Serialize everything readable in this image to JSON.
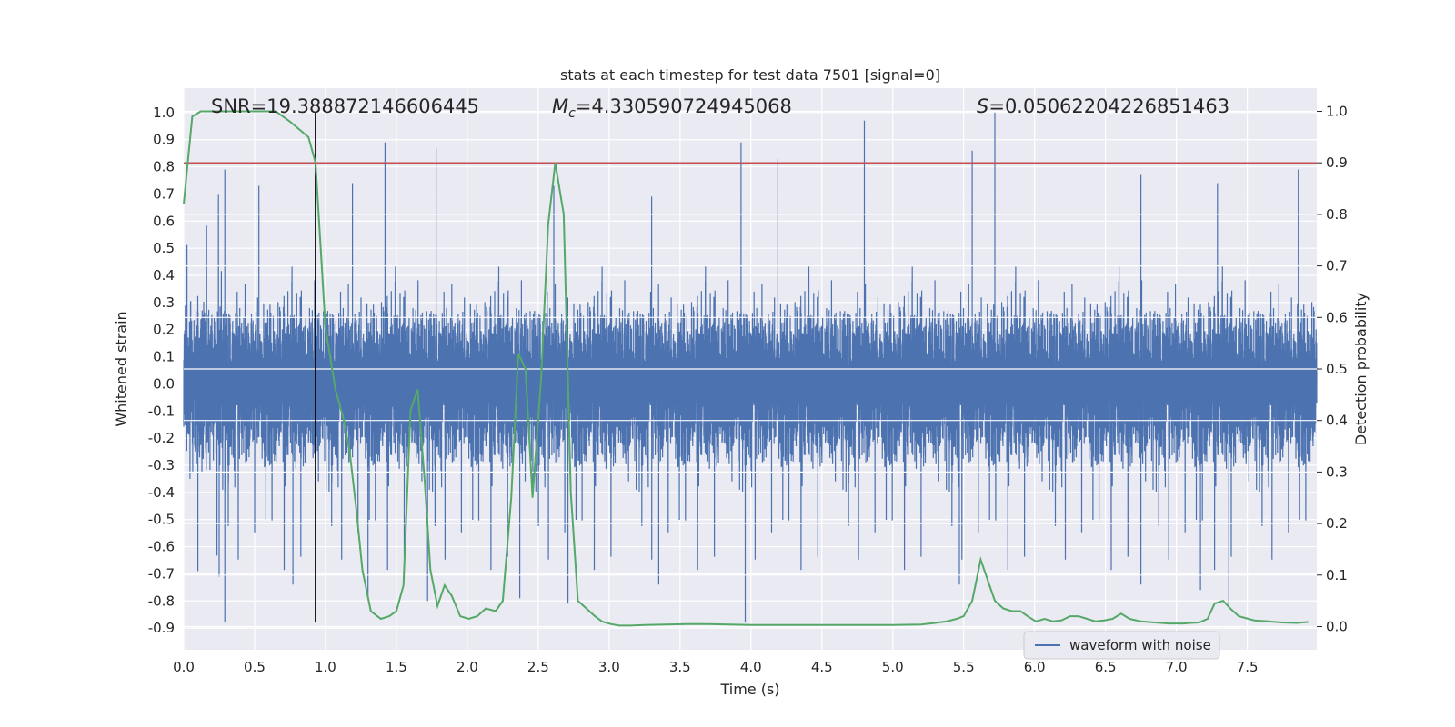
{
  "chart_data": {
    "type": "line",
    "title": "stats at each timestep for test data 7501 [signal=0]",
    "xlabel": "Time (s)",
    "ylabel_left": "Whitened strain",
    "ylabel_right": "Detection probability",
    "xlim": [
      0.0,
      7.99
    ],
    "ylim_left": [
      -0.98,
      1.09
    ],
    "ylim_right": [
      -0.045,
      1.045
    ],
    "x_ticks": [
      "0.0",
      "0.5",
      "1.0",
      "1.5",
      "2.0",
      "2.5",
      "3.0",
      "3.5",
      "4.0",
      "4.5",
      "5.0",
      "5.5",
      "6.0",
      "6.5",
      "7.0",
      "7.5"
    ],
    "y_ticks_left": [
      "1.0",
      "0.9",
      "0.8",
      "0.7",
      "0.6",
      "0.5",
      "0.4",
      "0.3",
      "0.2",
      "0.1",
      "0.0",
      "-0.1",
      "-0.2",
      "-0.3",
      "-0.4",
      "-0.5",
      "-0.6",
      "-0.7",
      "-0.8",
      "-0.9"
    ],
    "y_ticks_right": [
      "1.0",
      "0.9",
      "0.8",
      "0.7",
      "0.6",
      "0.5",
      "0.4",
      "0.3",
      "0.2",
      "0.1",
      "0.0"
    ],
    "annotations": {
      "snr": "SNR=19.388872146606445",
      "mc_symbol": "M",
      "mc_sub": "c",
      "mc_value": "=4.330590724945068",
      "s_symbol": "S",
      "s_value": "=0.05062204226851463"
    },
    "legend": {
      "label": "waveform with noise",
      "position": "lower-right"
    },
    "threshold_line": {
      "axis": "right",
      "y": 0.9,
      "color": "#c44e52"
    },
    "marker_vline": {
      "x": 0.93,
      "y_range": [
        -0.88,
        1.0
      ],
      "color": "#000000"
    },
    "series": [
      {
        "name": "waveform with noise",
        "axis": "left",
        "color": "#4c72b0",
        "sample_rate_hz": 2048,
        "noise_envelope": {
          "upper": 0.43,
          "lower": -0.52
        },
        "peaks": [
          {
            "x": 0.29,
            "y": 0.79
          },
          {
            "x": 0.53,
            "y": 0.73
          },
          {
            "x": 1.19,
            "y": 0.74
          },
          {
            "x": 1.42,
            "y": 0.89
          },
          {
            "x": 1.78,
            "y": 0.87
          },
          {
            "x": 3.93,
            "y": 0.89
          },
          {
            "x": 4.19,
            "y": 0.83
          },
          {
            "x": 4.8,
            "y": 0.97
          },
          {
            "x": 5.56,
            "y": 0.86
          },
          {
            "x": 5.72,
            "y": 1.0
          },
          {
            "x": 6.75,
            "y": 0.77
          },
          {
            "x": 7.29,
            "y": 0.74
          },
          {
            "x": 7.86,
            "y": 0.79
          },
          {
            "x": 2.61,
            "y": 0.73
          },
          {
            "x": 3.3,
            "y": 0.69
          }
        ],
        "troughs": [
          {
            "x": 0.29,
            "y": -0.88
          },
          {
            "x": 0.25,
            "y": -0.71
          },
          {
            "x": 0.77,
            "y": -0.74
          },
          {
            "x": 1.3,
            "y": -0.79
          },
          {
            "x": 1.72,
            "y": -0.8
          },
          {
            "x": 2.37,
            "y": -0.79
          },
          {
            "x": 2.71,
            "y": -0.81
          },
          {
            "x": 3.96,
            "y": -0.88
          },
          {
            "x": 3.35,
            "y": -0.74
          },
          {
            "x": 5.47,
            "y": -0.74
          },
          {
            "x": 6.75,
            "y": -0.74
          },
          {
            "x": 7.17,
            "y": -0.76
          },
          {
            "x": 7.37,
            "y": -0.82
          },
          {
            "x": 0.1,
            "y": -0.69
          }
        ]
      },
      {
        "name": "detection probability",
        "axis": "right",
        "color": "#55a868",
        "x": [
          0.0,
          0.06,
          0.12,
          0.25,
          0.45,
          0.65,
          0.75,
          0.88,
          0.93,
          1.0,
          1.07,
          1.13,
          1.17,
          1.22,
          1.26,
          1.32,
          1.39,
          1.45,
          1.5,
          1.55,
          1.6,
          1.65,
          1.7,
          1.74,
          1.79,
          1.84,
          1.89,
          1.95,
          2.01,
          2.07,
          2.13,
          2.2,
          2.25,
          2.31,
          2.36,
          2.41,
          2.46,
          2.52,
          2.57,
          2.62,
          2.68,
          2.73,
          2.78,
          2.84,
          2.9,
          2.95,
          3.01,
          3.07,
          3.15,
          3.25,
          3.4,
          3.55,
          3.7,
          3.85,
          4.0,
          4.2,
          4.4,
          4.6,
          4.8,
          5.0,
          5.2,
          5.3,
          5.38,
          5.45,
          5.5,
          5.56,
          5.62,
          5.67,
          5.72,
          5.78,
          5.84,
          5.9,
          5.95,
          6.01,
          6.07,
          6.13,
          6.19,
          6.25,
          6.31,
          6.37,
          6.43,
          6.49,
          6.55,
          6.61,
          6.67,
          6.75,
          6.85,
          6.95,
          7.05,
          7.1,
          7.16,
          7.22,
          7.27,
          7.33,
          7.38,
          7.44,
          7.55,
          7.65,
          7.75,
          7.85,
          7.93
        ],
        "y": [
          0.82,
          0.99,
          1.0,
          1.0,
          1.0,
          1.0,
          0.98,
          0.95,
          0.9,
          0.58,
          0.46,
          0.4,
          0.34,
          0.22,
          0.11,
          0.03,
          0.015,
          0.02,
          0.03,
          0.08,
          0.42,
          0.46,
          0.28,
          0.11,
          0.04,
          0.08,
          0.06,
          0.02,
          0.015,
          0.02,
          0.035,
          0.03,
          0.05,
          0.25,
          0.53,
          0.5,
          0.25,
          0.48,
          0.78,
          0.9,
          0.8,
          0.26,
          0.05,
          0.035,
          0.02,
          0.01,
          0.005,
          0.002,
          0.002,
          0.003,
          0.004,
          0.005,
          0.005,
          0.004,
          0.003,
          0.003,
          0.003,
          0.003,
          0.003,
          0.003,
          0.004,
          0.007,
          0.01,
          0.015,
          0.02,
          0.05,
          0.13,
          0.09,
          0.05,
          0.035,
          0.03,
          0.03,
          0.02,
          0.01,
          0.015,
          0.01,
          0.012,
          0.02,
          0.02,
          0.015,
          0.01,
          0.012,
          0.015,
          0.025,
          0.015,
          0.01,
          0.008,
          0.006,
          0.006,
          0.007,
          0.008,
          0.015,
          0.045,
          0.05,
          0.035,
          0.02,
          0.012,
          0.01,
          0.008,
          0.007,
          0.009
        ]
      }
    ]
  }
}
